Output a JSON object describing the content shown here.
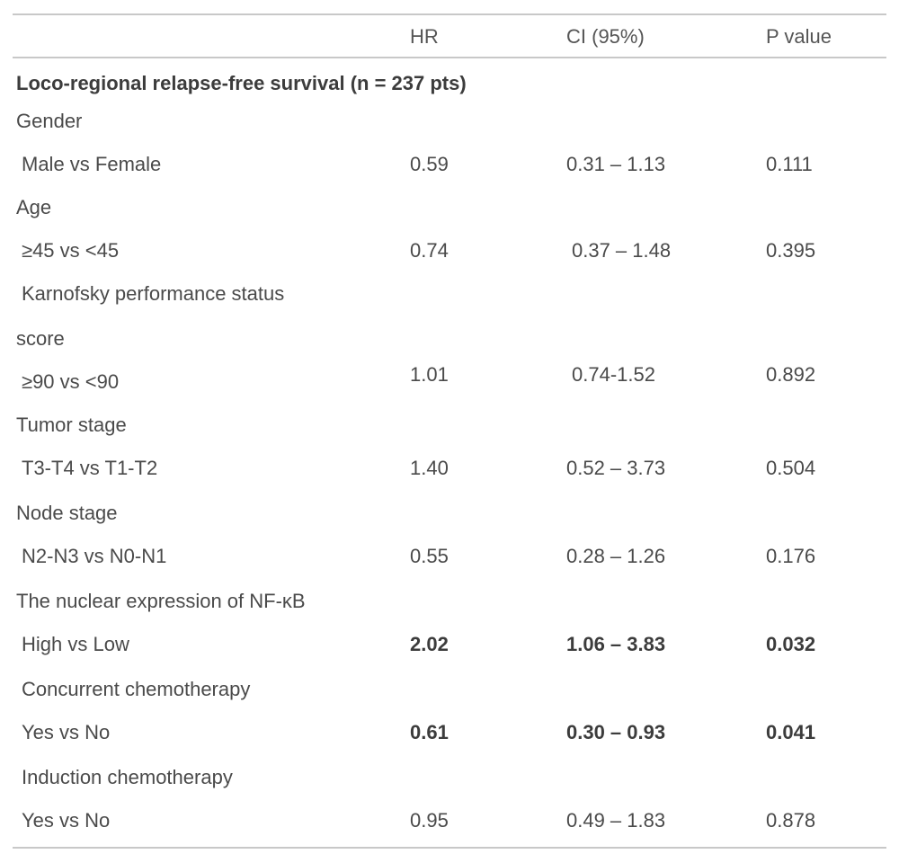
{
  "header": {
    "hr": "HR",
    "ci": "CI (95%)",
    "p": "P value"
  },
  "section_title": "Loco-regional relapse-free survival (n = 237 pts)",
  "rows": [
    {
      "label": "Gender"
    },
    {
      "label": "Male vs Female",
      "hr": "0.59",
      "ci": "0.31 – 1.13",
      "p": "0.111"
    },
    {
      "label": "Age"
    },
    {
      "label": "≥45 vs <45",
      "hr": "0.74",
      "ci": "0.37 – 1.48",
      "p": "0.395"
    },
    {
      "label": "Karnofsky performance status"
    },
    {
      "label": "score"
    },
    {
      "label": "≥90 vs <90",
      "hr": "1.01",
      "ci": "0.74-1.52",
      "p": "0.892"
    },
    {
      "label": "Tumor stage"
    },
    {
      "label": "T3-T4 vs T1-T2",
      "hr": "1.40",
      "ci": "0.52 – 3.73",
      "p": "0.504"
    },
    {
      "label": "Node stage"
    },
    {
      "label": "N2-N3 vs N0-N1",
      "hr": "0.55",
      "ci": "0.28 – 1.26",
      "p": "0.176"
    },
    {
      "label": "The nuclear expression of NF-κB"
    },
    {
      "label": "High vs  Low",
      "hr": "2.02",
      "ci": "1.06 – 3.83",
      "p": "0.032"
    },
    {
      "label": "Concurrent chemotherapy"
    },
    {
      "label": "Yes vs  No",
      "hr": "0.61",
      "ci": "0.30 – 0.93",
      "p": "0.041"
    },
    {
      "label": "Induction chemotherapy"
    },
    {
      "label": "Yes vs No",
      "hr": "0.95",
      "ci": "0.49 – 1.83",
      "p": "0.878"
    }
  ]
}
